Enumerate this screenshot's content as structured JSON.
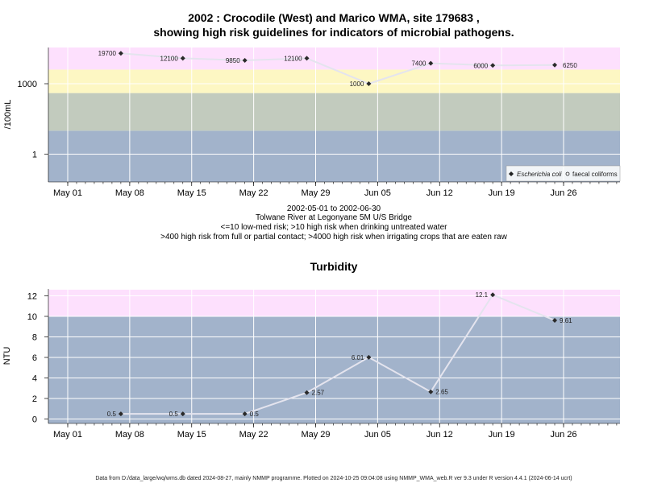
{
  "chart_data": [
    {
      "type": "line",
      "title_line1": "2002 : Crocodile (West) and Marico WMA, site 179683 ,",
      "title_line2": "showing high risk guidelines for indicators of microbial pathogens.",
      "ylabel": "/100mL",
      "yscale": "log",
      "yticks": [
        "1",
        "1000"
      ],
      "xticks": [
        "May 01",
        "May 08",
        "May 15",
        "May 22",
        "May 29",
        "Jun 05",
        "Jun 12",
        "Jun 19",
        "Jun 26"
      ],
      "xticks_dates": [
        "2002-05-01",
        "2002-05-08",
        "2002-05-15",
        "2002-05-22",
        "2002-05-29",
        "2002-06-05",
        "2002-06-12",
        "2002-06-19",
        "2002-06-26"
      ],
      "bands": [
        {
          "from": 0.05,
          "to": 10,
          "color": "#a2b3cb"
        },
        {
          "from": 10,
          "to": 400,
          "color": "#c2cbbe"
        },
        {
          "from": 400,
          "to": 4000,
          "color": "#fdf7c3"
        },
        {
          "from": 4000,
          "to": 40000,
          "color": "#fde0fd"
        },
        {
          "from": 40000,
          "to": 100000,
          "color": "#f9b8c5"
        }
      ],
      "series": [
        {
          "name": "Escherichia coli",
          "x": [
            "2002-05-07",
            "2002-05-14",
            "2002-05-21",
            "2002-05-28",
            "2002-06-04",
            "2002-06-11",
            "2002-06-18",
            "2002-06-25"
          ],
          "values": [
            19700,
            12100,
            9850,
            12100,
            1000,
            7400,
            6000,
            6250
          ],
          "labels": [
            "19700",
            "12100",
            "9850",
            "12100",
            "1000",
            "7400",
            "6000",
            "6250"
          ]
        }
      ],
      "legend": {
        "position": "bottom-right",
        "entries": [
          "Escherichia coli",
          "faecal coliforms"
        ]
      },
      "caption": [
        "2002-05-01 to 2002-06-30",
        "Tolwane River at Legonyane 5M U/S Bridge",
        "<=10 low-med risk; >10 high risk when drinking untreated water",
        ">400 high risk from full or partial contact; >4000 high risk when irrigating crops that are eaten raw"
      ]
    },
    {
      "type": "line",
      "title": "Turbidity",
      "ylabel": "NTU",
      "ylim": [
        -0.5,
        12.6
      ],
      "yticks": [
        0,
        2,
        4,
        6,
        8,
        10,
        12
      ],
      "xticks": [
        "May 01",
        "May 08",
        "May 15",
        "May 22",
        "May 29",
        "Jun 05",
        "Jun 12",
        "Jun 19",
        "Jun 26"
      ],
      "bands": [
        {
          "from": -0.5,
          "to": 10,
          "color": "#a2b3cb"
        },
        {
          "from": 10,
          "to": 12.6,
          "color": "#fde0fd"
        }
      ],
      "series": [
        {
          "x": [
            "2002-05-07",
            "2002-05-14",
            "2002-05-21",
            "2002-05-28",
            "2002-06-04",
            "2002-06-11",
            "2002-06-18",
            "2002-06-25"
          ],
          "values": [
            0.5,
            0.5,
            0.5,
            2.57,
            6.01,
            2.65,
            12.1,
            9.61
          ],
          "labels": [
            "0.5",
            "0.5",
            "0.5",
            "2.57",
            "6.01",
            "2.65",
            "12.1",
            "9.61"
          ]
        }
      ]
    }
  ],
  "footer": "Data from D:/data_large/wq/wms.db dated 2024-08-27, mainly NMMP programme. Plotted on 2024-10-25 09:04:08 using NMMP_WMA_web.R ver 9.3 under R version 4.4.1 (2024-06-14 ucrt)"
}
